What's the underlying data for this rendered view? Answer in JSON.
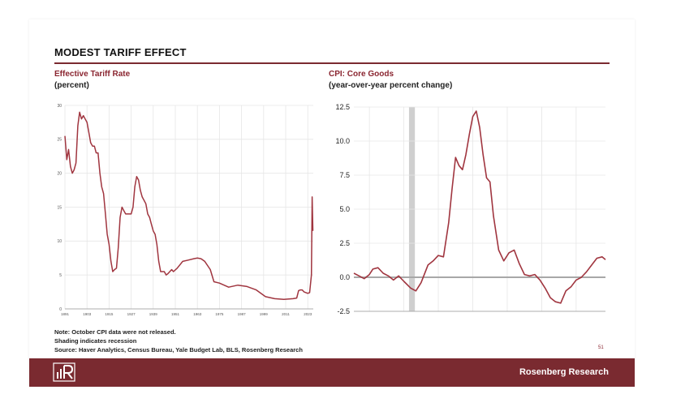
{
  "title": "MODEST TARIFF EFFECT",
  "left_chart": {
    "subtitle": "Effective Tariff Rate",
    "unit": "(percent)"
  },
  "right_chart": {
    "subtitle": "CPI: Core Goods",
    "unit": "(year-over-year percent change)"
  },
  "notes": [
    "Note: October CPI data were not released.",
    "Shading indicates recession",
    "Source: Haver Analytics, Census Bureau, Yale Budget Lab, BLS, Rosenberg Research"
  ],
  "page_number": "51",
  "footer": {
    "brand": "Rosenberg Research"
  },
  "colors": {
    "accent": "#7a2a30",
    "line": "#a0353f",
    "recession": "#cfcfcf",
    "zero_line": "#a8a8a8"
  },
  "chart_data": [
    {
      "type": "line",
      "title": "Effective Tariff Rate",
      "ylabel": "(percent)",
      "xlim": [
        1891,
        2026
      ],
      "ylim": [
        0,
        30
      ],
      "yticks": [
        0,
        5,
        10,
        15,
        20,
        25,
        30
      ],
      "xticks": [
        1891,
        1903,
        1915,
        1927,
        1939,
        1951,
        1963,
        1975,
        1987,
        1999,
        2011,
        2023
      ],
      "grid": true,
      "series": [
        {
          "x": [
            1891,
            1892,
            1893,
            1894,
            1895,
            1896,
            1897,
            1898,
            1899,
            1900,
            1901,
            1902,
            1903,
            1904,
            1905,
            1906,
            1907,
            1908,
            1909,
            1910,
            1911,
            1912,
            1913,
            1914,
            1915,
            1916,
            1917,
            1918,
            1919,
            1920,
            1921,
            1922,
            1923,
            1924,
            1925,
            1926,
            1927,
            1928,
            1929,
            1930,
            1931,
            1932,
            1933,
            1934,
            1935,
            1936,
            1937,
            1938,
            1939,
            1940,
            1941,
            1942,
            1943,
            1944,
            1945,
            1946,
            1947,
            1948,
            1949,
            1950,
            1952,
            1955,
            1958,
            1961,
            1963,
            1965,
            1967,
            1970,
            1972,
            1975,
            1980,
            1985,
            1990,
            1995,
            2000,
            2005,
            2010,
            2015,
            2017,
            2018,
            2019,
            2020,
            2021,
            2022,
            2023,
            2024,
            2025,
            2025.4,
            2025.8
          ],
          "y": [
            25.5,
            22,
            23.5,
            21,
            20,
            20.5,
            21.5,
            27,
            29,
            28,
            28.5,
            28,
            27.5,
            26,
            24.5,
            24,
            24,
            23,
            23,
            20,
            18,
            17,
            14,
            11,
            9.5,
            7,
            5.5,
            5.8,
            6,
            9,
            13.5,
            15,
            14.5,
            14,
            14,
            14,
            14,
            15,
            18,
            19.5,
            19,
            17.5,
            16.5,
            16,
            15.5,
            14,
            13.5,
            12.5,
            11.5,
            11,
            9.5,
            7,
            5.5,
            5.5,
            5.5,
            5,
            5.2,
            5.5,
            5.8,
            5.5,
            6,
            7,
            7.2,
            7.4,
            7.5,
            7.4,
            7,
            5.8,
            4,
            3.8,
            3.2,
            3.5,
            3.3,
            2.8,
            1.8,
            1.5,
            1.4,
            1.5,
            1.6,
            2.7,
            2.8,
            2.8,
            2.5,
            2.4,
            2.3,
            2.4,
            5,
            16.5,
            11.5
          ]
        }
      ]
    },
    {
      "type": "line",
      "title": "CPI: Core Goods",
      "ylabel": "(year-over-year percent change)",
      "xlim": [
        2018.55,
        2025.85
      ],
      "ylim": [
        -2.5,
        12.5
      ],
      "yticks": [
        -2.5,
        0.0,
        2.5,
        5.0,
        7.5,
        10.0,
        12.5
      ],
      "ytick_labels": [
        "-2.5",
        "0.0",
        "2.5",
        "5.0",
        "7.5",
        "10.0",
        "12.5"
      ],
      "xticks": [
        19,
        20,
        21,
        22,
        23,
        24,
        25
      ],
      "recession": [
        2020.15,
        2020.32
      ],
      "grid": true,
      "series": [
        {
          "x": [
            2018.55,
            2018.7,
            2018.85,
            2019.0,
            2019.1,
            2019.25,
            2019.4,
            2019.55,
            2019.7,
            2019.85,
            2020.0,
            2020.2,
            2020.35,
            2020.5,
            2020.7,
            2020.85,
            2021.0,
            2021.15,
            2021.3,
            2021.4,
            2021.5,
            2021.6,
            2021.7,
            2021.8,
            2021.9,
            2022.0,
            2022.1,
            2022.2,
            2022.3,
            2022.4,
            2022.5,
            2022.6,
            2022.75,
            2022.9,
            2023.05,
            2023.2,
            2023.35,
            2023.5,
            2023.65,
            2023.8,
            2023.95,
            2024.1,
            2024.25,
            2024.4,
            2024.55,
            2024.7,
            2024.85,
            2025.0,
            2025.15,
            2025.3,
            2025.45,
            2025.6,
            2025.75,
            2025.85
          ],
          "y": [
            0.3,
            0.1,
            -0.1,
            0.2,
            0.6,
            0.7,
            0.3,
            0.1,
            -0.2,
            0.1,
            -0.3,
            -0.8,
            -1.0,
            -0.4,
            0.9,
            1.2,
            1.6,
            1.5,
            4.0,
            6.5,
            8.8,
            8.2,
            7.9,
            9.0,
            10.5,
            11.8,
            12.2,
            11.0,
            9.0,
            7.3,
            7.0,
            4.5,
            2.0,
            1.2,
            1.8,
            2.0,
            1.0,
            0.2,
            0.1,
            0.2,
            -0.2,
            -0.8,
            -1.5,
            -1.8,
            -1.9,
            -1.0,
            -0.7,
            -0.2,
            0.0,
            0.4,
            0.9,
            1.4,
            1.5,
            1.3
          ]
        }
      ]
    }
  ]
}
